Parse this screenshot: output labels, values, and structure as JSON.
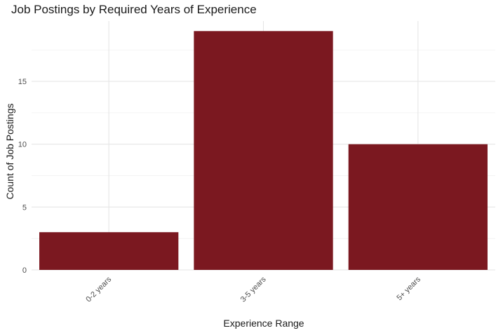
{
  "chart_data": {
    "type": "bar",
    "title": "Job Postings by Required Years of Experience",
    "xlabel": "Experience Range",
    "ylabel": "Count of Job Postings",
    "categories": [
      "0-2 years",
      "3-5 years",
      "5+ years"
    ],
    "values": [
      3,
      19,
      10
    ],
    "ylim": [
      0,
      19.8
    ],
    "y_ticks": [
      0,
      5,
      10,
      15
    ],
    "bar_color": "#7B1820",
    "grid": true,
    "x_tick_rotation": "45 degrees"
  }
}
